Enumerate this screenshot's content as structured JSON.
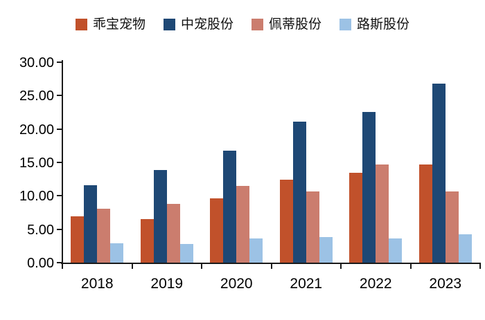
{
  "chart_data": {
    "type": "bar",
    "title": "",
    "xlabel": "",
    "ylabel": "",
    "categories": [
      "2018",
      "2019",
      "2020",
      "2021",
      "2022",
      "2023"
    ],
    "series": [
      {
        "name": "乖宝宠物",
        "color": "#C1512B",
        "values": [
          6.9,
          6.5,
          9.6,
          12.4,
          13.5,
          14.7
        ]
      },
      {
        "name": "中宠股份",
        "color": "#1E4875",
        "values": [
          11.6,
          13.9,
          16.8,
          21.1,
          22.6,
          26.8
        ]
      },
      {
        "name": "佩蒂股份",
        "color": "#CB7D6E",
        "values": [
          8.1,
          8.8,
          11.5,
          10.7,
          14.7,
          10.7
        ]
      },
      {
        "name": "路斯股份",
        "color": "#9CC2E5",
        "values": [
          2.9,
          2.8,
          3.6,
          3.8,
          3.6,
          4.2
        ]
      }
    ],
    "ylim": [
      0,
      30
    ],
    "ytick_step": 5,
    "ytick_labels": [
      "0.00",
      "5.00",
      "10.00",
      "15.00",
      "20.00",
      "25.00",
      "30.00"
    ],
    "legend_position": "top",
    "grid": false,
    "axis_color": "#1a1a1a",
    "text_color": "#000000"
  }
}
